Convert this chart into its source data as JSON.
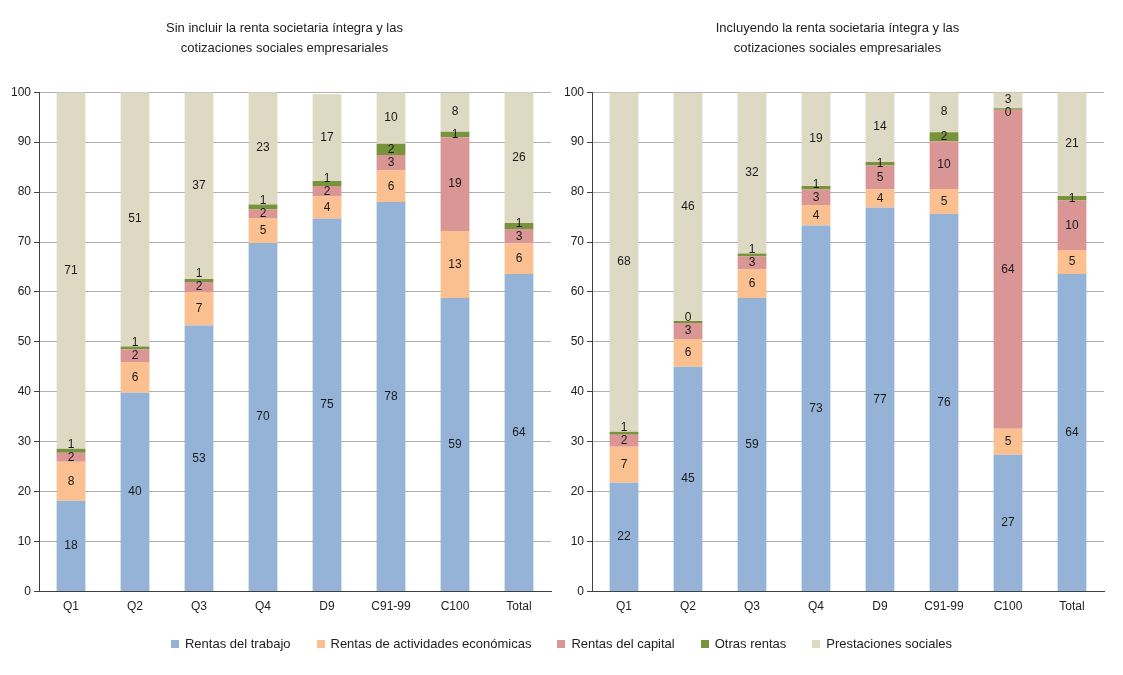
{
  "chart_data": [
    {
      "type": "bar",
      "title": "Sin incluir la renta societaria íntegra y las cotizaciones sociales empresariales",
      "categories": [
        "Q1",
        "Q2",
        "Q3",
        "Q4",
        "D9",
        "C91-99",
        "C100",
        "Total"
      ],
      "stacked": true,
      "ylim": [
        0,
        100
      ],
      "yticks": [
        0,
        10,
        20,
        30,
        40,
        50,
        60,
        70,
        80,
        90,
        100
      ],
      "grid": "y",
      "legend": "bottom",
      "series": [
        {
          "name": "Rentas del trabajo",
          "color": "#95b3d7",
          "values": [
            18.2,
            39.8,
            53.3,
            69.8,
            74.7,
            78,
            58.8,
            63.6
          ],
          "value_labels": [
            "18",
            "40",
            "53",
            "70",
            "75",
            "78",
            "59",
            "64"
          ]
        },
        {
          "name": "Rentas de actividades económicas",
          "color": "#fac090",
          "values": [
            7.8,
            6.2,
            6.7,
            5,
            4.4,
            6.3,
            13.4,
            6.1
          ],
          "value_labels": [
            "8",
            "6",
            "7",
            "5",
            "4",
            "6",
            "13",
            "6"
          ]
        },
        {
          "name": "Rentas del capital",
          "color": "#d99694",
          "values": [
            1.8,
            2.5,
            2,
            1.7,
            2.1,
            3.1,
            18.8,
            2.9
          ],
          "value_labels": [
            "2",
            "2",
            "2",
            "2",
            "2",
            "3",
            "19",
            "3"
          ]
        },
        {
          "name": "Otras rentas",
          "color": "#77933c",
          "values": [
            0.8,
            0.6,
            0.6,
            1,
            1,
            2.3,
            1.1,
            1.2
          ],
          "value_labels": [
            "1",
            "1",
            "1",
            "1",
            "1",
            "2",
            "1",
            "1"
          ]
        },
        {
          "name": "Prestaciones sociales",
          "color": "#ddd9c3",
          "values": [
            71.4,
            51,
            37.4,
            22.6,
            17.4,
            10.3,
            7.8,
            26.3
          ],
          "value_labels": [
            "71",
            "51",
            "37",
            "23",
            "17",
            "10",
            "8",
            "26"
          ]
        }
      ]
    },
    {
      "type": "bar",
      "title": "Incluyendo la renta societaria íntegra y las cotizaciones sociales empresariales",
      "categories": [
        "Q1",
        "Q2",
        "Q3",
        "Q4",
        "D9",
        "C91-99",
        "C100",
        "Total"
      ],
      "stacked": true,
      "ylim": [
        0,
        100
      ],
      "yticks": [
        0,
        10,
        20,
        30,
        40,
        50,
        60,
        70,
        80,
        90,
        100
      ],
      "grid": "y",
      "series": [
        {
          "name": "Rentas del trabajo",
          "color": "#95b3d7",
          "values": [
            21.8,
            45,
            58.8,
            73.3,
            76.9,
            75.6,
            27.4,
            63.6
          ],
          "value_labels": [
            "22",
            "45",
            "59",
            "73",
            "77",
            "76",
            "27",
            "64"
          ]
        },
        {
          "name": "Rentas de actividades económicas",
          "color": "#fac090",
          "values": [
            7.2,
            5.6,
            5.7,
            4.1,
            3.6,
            5,
            5.2,
            4.8
          ],
          "value_labels": [
            "7",
            "6",
            "6",
            "4",
            "4",
            "5",
            "5",
            "5"
          ]
        },
        {
          "name": "Rentas del capital",
          "color": "#d99694",
          "values": [
            2.4,
            3.2,
            2.6,
            3.1,
            4.8,
            9.6,
            63.9,
            9.9
          ],
          "value_labels": [
            "2",
            "3",
            "3",
            "3",
            "5",
            "10",
            "64",
            "10"
          ]
        },
        {
          "name": "Otras rentas",
          "color": "#77933c",
          "values": [
            0.6,
            0.4,
            0.6,
            0.7,
            0.7,
            1.8,
            0.3,
            0.9
          ],
          "value_labels": [
            "1",
            "0",
            "1",
            "1",
            "1",
            "2",
            "0",
            "1"
          ]
        },
        {
          "name": "Prestaciones sociales",
          "color": "#ddd9c3",
          "values": [
            68,
            45.7,
            32.4,
            18.8,
            14.1,
            8,
            3.2,
            20.9
          ],
          "value_labels": [
            "68",
            "46",
            "32",
            "19",
            "14",
            "8",
            "3",
            "21"
          ]
        }
      ]
    }
  ]
}
